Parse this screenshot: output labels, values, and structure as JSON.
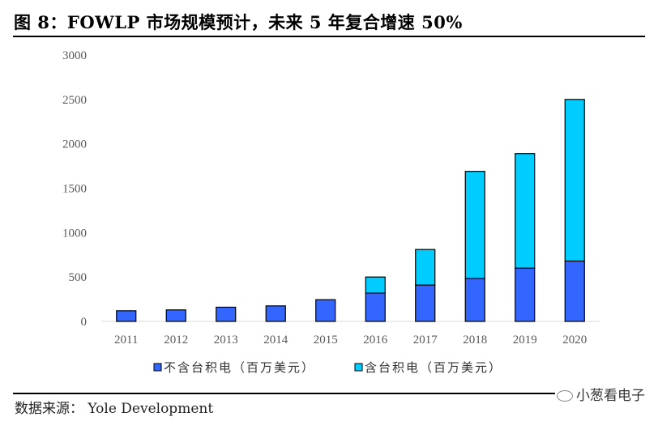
{
  "figure": {
    "title": "图 8：FOWLP 市场规模预计，未来 5 年复合增速 50%",
    "source": "数据来源： Yole Development",
    "watermark": "小葱看电子"
  },
  "colors": {
    "series_excl": "#3366ff",
    "series_incl": "#00ccff",
    "bar_border": "#000000",
    "axis_line": "#d9d9d9",
    "tick_text": "#595959"
  },
  "chart_data": {
    "type": "bar",
    "stacked": true,
    "title": "FOWLP 市场规模预计，未来 5 年复合增速 50%",
    "xlabel": "",
    "ylabel": "",
    "ylim": [
      0,
      3000
    ],
    "yticks": [
      0,
      500,
      1000,
      1500,
      2000,
      2500,
      3000
    ],
    "grid": false,
    "legend_position": "bottom",
    "categories": [
      "2011",
      "2012",
      "2013",
      "2014",
      "2015",
      "2016",
      "2017",
      "2018",
      "2019",
      "2020"
    ],
    "series": [
      {
        "name": "不含台积电（百万美元）",
        "values": [
          120,
          130,
          160,
          175,
          245,
          320,
          410,
          485,
          600,
          680
        ]
      },
      {
        "name": "含台积电（百万美元）",
        "values": [
          0,
          0,
          0,
          0,
          0,
          180,
          400,
          1205,
          1290,
          1820
        ]
      }
    ]
  }
}
